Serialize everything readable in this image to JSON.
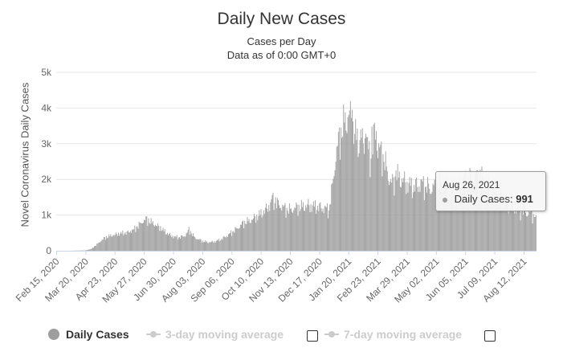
{
  "chart_data": {
    "type": "bar",
    "title": "Daily New Cases",
    "subtitle_lines": [
      "Cases per Day",
      "Data as of 0:00 GMT+0"
    ],
    "ylabel": "Novel Coronavirus Daily Cases",
    "xlabel": "",
    "ylim": [
      0,
      5000
    ],
    "y_ticks": [
      0,
      1000,
      2000,
      3000,
      4000,
      5000
    ],
    "y_tick_labels": [
      "0",
      "1k",
      "2k",
      "3k",
      "4k",
      "5k"
    ],
    "x_range": [
      "2020-02-15",
      "2021-08-26"
    ],
    "x_ticks": [
      "2020-02-15",
      "2020-03-20",
      "2020-04-23",
      "2020-05-27",
      "2020-06-30",
      "2020-08-03",
      "2020-09-06",
      "2020-10-10",
      "2020-11-13",
      "2020-12-17",
      "2021-01-20",
      "2021-02-23",
      "2021-03-29",
      "2021-05-02",
      "2021-06-05",
      "2021-07-09",
      "2021-08-12"
    ],
    "x_tick_labels": [
      "Feb 15, 2020",
      "Mar 20, 2020",
      "Apr 23, 2020",
      "May 27, 2020",
      "Jun 30, 2020",
      "Aug 03, 2020",
      "Sep 06, 2020",
      "Oct 10, 2020",
      "Nov 13, 2020",
      "Dec 17, 2020",
      "Jan 20, 2021",
      "Feb 23, 2021",
      "Mar 29, 2021",
      "May 02, 2021",
      "Jun 05, 2021",
      "Jul 09, 2021",
      "Aug 12, 2021"
    ],
    "grid": true,
    "legend_position": "bottom",
    "bar_color": "#9e9e9e",
    "series": [
      {
        "name": "Daily Cases",
        "points": [
          [
            "2020-02-15",
            0
          ],
          [
            "2020-03-01",
            0
          ],
          [
            "2020-03-20",
            10
          ],
          [
            "2020-03-27",
            60
          ],
          [
            "2020-04-03",
            200
          ],
          [
            "2020-04-10",
            350
          ],
          [
            "2020-04-17",
            420
          ],
          [
            "2020-04-24",
            460
          ],
          [
            "2020-05-01",
            500
          ],
          [
            "2020-05-08",
            520
          ],
          [
            "2020-05-15",
            600
          ],
          [
            "2020-05-22",
            760
          ],
          [
            "2020-05-29",
            900
          ],
          [
            "2020-06-01",
            860
          ],
          [
            "2020-06-08",
            750
          ],
          [
            "2020-06-15",
            650
          ],
          [
            "2020-06-22",
            500
          ],
          [
            "2020-06-30",
            400
          ],
          [
            "2020-07-07",
            380
          ],
          [
            "2020-07-14",
            430
          ],
          [
            "2020-07-18",
            600
          ],
          [
            "2020-07-25",
            370
          ],
          [
            "2020-08-03",
            270
          ],
          [
            "2020-08-10",
            240
          ],
          [
            "2020-08-17",
            260
          ],
          [
            "2020-08-24",
            320
          ],
          [
            "2020-08-31",
            420
          ],
          [
            "2020-09-06",
            520
          ],
          [
            "2020-09-13",
            650
          ],
          [
            "2020-09-20",
            800
          ],
          [
            "2020-09-27",
            850
          ],
          [
            "2020-10-04",
            950
          ],
          [
            "2020-10-10",
            1050
          ],
          [
            "2020-10-17",
            1200
          ],
          [
            "2020-10-24",
            1430
          ],
          [
            "2020-10-31",
            1300
          ],
          [
            "2020-11-07",
            1200
          ],
          [
            "2020-11-13",
            1150
          ],
          [
            "2020-11-20",
            1220
          ],
          [
            "2020-11-27",
            1250
          ],
          [
            "2020-12-04",
            1280
          ],
          [
            "2020-12-11",
            1260
          ],
          [
            "2020-12-17",
            1230
          ],
          [
            "2020-12-24",
            1200
          ],
          [
            "2020-12-28",
            1150
          ],
          [
            "2021-01-01",
            1800
          ],
          [
            "2021-01-05",
            2700
          ],
          [
            "2021-01-10",
            3300
          ],
          [
            "2021-01-15",
            3600
          ],
          [
            "2021-01-20",
            3850
          ],
          [
            "2021-01-25",
            3500
          ],
          [
            "2021-01-30",
            3100
          ],
          [
            "2021-02-04",
            3000
          ],
          [
            "2021-02-09",
            3200
          ],
          [
            "2021-02-14",
            2600
          ],
          [
            "2021-02-19",
            3300
          ],
          [
            "2021-02-23",
            2900
          ],
          [
            "2021-03-01",
            2700
          ],
          [
            "2021-03-06",
            2200
          ],
          [
            "2021-03-11",
            1900
          ],
          [
            "2021-03-18",
            2100
          ],
          [
            "2021-03-29",
            1900
          ],
          [
            "2021-04-05",
            1800
          ],
          [
            "2021-04-15",
            1900
          ],
          [
            "2021-04-25",
            1750
          ],
          [
            "2021-05-02",
            1850
          ],
          [
            "2021-05-10",
            1900
          ],
          [
            "2021-05-20",
            1750
          ],
          [
            "2021-06-01",
            1900
          ],
          [
            "2021-06-05",
            2000
          ],
          [
            "2021-06-15",
            2100
          ],
          [
            "2021-06-25",
            2000
          ],
          [
            "2021-07-05",
            1800
          ],
          [
            "2021-07-09",
            1700
          ],
          [
            "2021-07-20",
            1400
          ],
          [
            "2021-08-01",
            1200
          ],
          [
            "2021-08-12",
            1100
          ],
          [
            "2021-08-20",
            1050
          ],
          [
            "2021-08-26",
            991
          ]
        ],
        "spikes": [
          [
            "2020-10-23",
            1560
          ],
          [
            "2020-10-27",
            1500
          ],
          [
            "2021-01-16",
            3880
          ],
          [
            "2021-01-21",
            3930
          ],
          [
            "2021-01-24",
            3950
          ],
          [
            "2021-02-03",
            3400
          ],
          [
            "2021-02-09",
            3280
          ],
          [
            "2021-02-16",
            3480
          ],
          [
            "2021-02-21",
            3350
          ],
          [
            "2021-03-16",
            2250
          ],
          [
            "2021-06-18",
            2250
          ],
          [
            "2021-06-22",
            2270
          ]
        ]
      },
      {
        "name": "3-day moving average"
      },
      {
        "name": "7-day moving average"
      }
    ],
    "tooltip": {
      "date": "Aug 26, 2021",
      "series_label": "Daily Cases:",
      "value_text": "991"
    }
  },
  "legend": {
    "item1": "Daily Cases",
    "item2": "3-day moving average",
    "item3": "7-day moving average",
    "dot_color": "#9e9e9e",
    "inactive_color": "#cccccc"
  }
}
